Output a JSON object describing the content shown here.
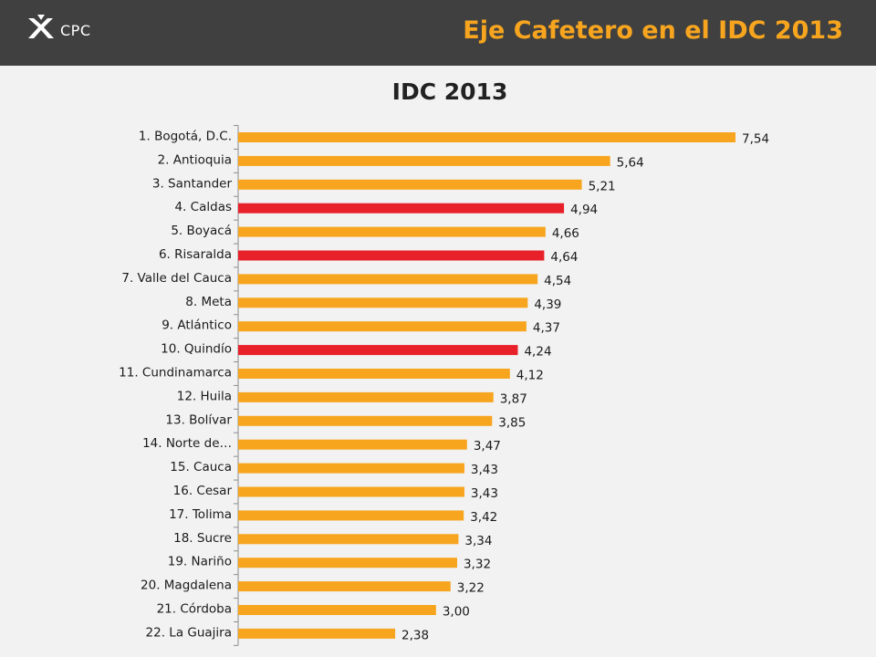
{
  "header": {
    "logo_text": "CPC",
    "title": "Eje Cafetero en el IDC 2013"
  },
  "colors": {
    "header_bg": "#404040",
    "accent": "#f7a51e",
    "bar_default": "#f7a51e",
    "bar_highlight": "#e8202a"
  },
  "chart_data": {
    "type": "bar",
    "orientation": "horizontal",
    "title": "IDC 2013",
    "xlabel": "",
    "ylabel": "",
    "grid": false,
    "legend": "none",
    "categories": [
      "1. Bogotá, D.C.",
      "2. Antioquia",
      "3. Santander",
      "4. Caldas",
      "5. Boyacá",
      "6. Risaralda",
      "7. Valle del Cauca",
      "8. Meta",
      "9. Atlántico",
      "10. Quindío",
      "11. Cundinamarca",
      "12. Huila",
      "13. Bolívar",
      "14. Norte de…",
      "15. Cauca",
      "16. Cesar",
      "17. Tolima",
      "18. Sucre",
      "19. Nariño",
      "20. Magdalena",
      "21. Córdoba",
      "22. La Guajira"
    ],
    "values": [
      7.54,
      5.64,
      5.21,
      4.94,
      4.66,
      4.64,
      4.54,
      4.39,
      4.37,
      4.24,
      4.12,
      3.87,
      3.85,
      3.47,
      3.43,
      3.43,
      3.42,
      3.34,
      3.32,
      3.22,
      3.0,
      2.38
    ],
    "value_labels": [
      "7,54",
      "5,64",
      "5,21",
      "4,94",
      "4,66",
      "4,64",
      "4,54",
      "4,39",
      "4,37",
      "4,24",
      "4,12",
      "3,87",
      "3,85",
      "3,47",
      "3,43",
      "3,43",
      "3,42",
      "3,34",
      "3,32",
      "3,22",
      "3,00",
      "2,38"
    ],
    "highlighted": [
      "4. Caldas",
      "6. Risaralda",
      "10. Quindío"
    ],
    "xlim": [
      0,
      7.54
    ]
  }
}
